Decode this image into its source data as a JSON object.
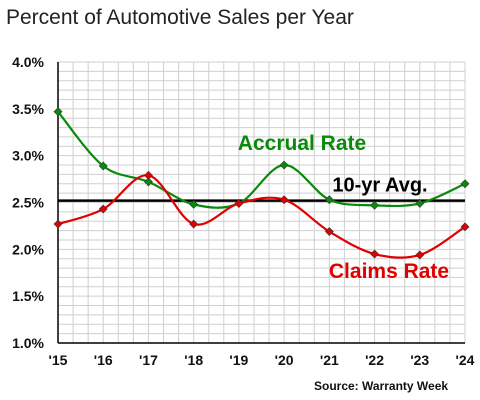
{
  "chart_data": {
    "type": "line",
    "title": "Percent of Automotive Sales per Year",
    "x": [
      "'15",
      "'16",
      "'17",
      "'18",
      "'19",
      "'20",
      "'21",
      "'22",
      "'23",
      "'24"
    ],
    "yticks": [
      "1.0%",
      "1.5%",
      "2.0%",
      "2.5%",
      "3.0%",
      "3.5%",
      "4.0%"
    ],
    "ylim": [
      1.0,
      4.0
    ],
    "grid": true,
    "series": [
      {
        "name": "Accrual Rate",
        "color": "#0a8a0a",
        "values": [
          3.47,
          2.89,
          2.72,
          2.48,
          2.49,
          2.9,
          2.53,
          2.47,
          2.49,
          2.7
        ]
      },
      {
        "name": "Claims Rate",
        "color": "#e00000",
        "values": [
          2.27,
          2.43,
          2.79,
          2.27,
          2.49,
          2.53,
          2.19,
          1.95,
          1.94,
          2.24
        ]
      }
    ],
    "reference_line": {
      "label": "10-yr Avg.",
      "value": 2.52,
      "color": "#000000"
    },
    "source": "Source: Warranty Week"
  }
}
